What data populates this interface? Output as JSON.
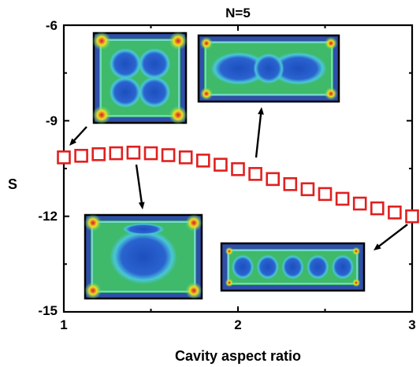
{
  "chart_data": {
    "type": "scatter",
    "title": "N=5",
    "xlabel": "Cavity aspect ratio",
    "ylabel": "S",
    "xlim": [
      1,
      3
    ],
    "ylim": [
      -15,
      -6
    ],
    "xticks": [
      "1",
      "2",
      "3"
    ],
    "yticks": [
      "-6",
      "-9",
      "-12",
      "-15"
    ],
    "grid": false,
    "marker": "open-square",
    "colors": {
      "marker": "#e02020",
      "axis": "#000000",
      "inset_bg": "#2f4fa8",
      "inset_frame": "#000000"
    },
    "x": [
      1.0,
      1.1,
      1.2,
      1.3,
      1.4,
      1.5,
      1.6,
      1.7,
      1.8,
      1.9,
      2.0,
      2.1,
      2.2,
      2.3,
      2.4,
      2.5,
      2.6,
      2.7,
      2.8,
      2.9,
      3.0
    ],
    "y": [
      -10.15,
      -10.1,
      -10.05,
      -10.02,
      -10.0,
      -10.02,
      -10.08,
      -10.15,
      -10.25,
      -10.38,
      -10.52,
      -10.67,
      -10.83,
      -10.99,
      -11.15,
      -11.3,
      -11.45,
      -11.6,
      -11.75,
      -11.88,
      -12.0
    ],
    "insets": [
      {
        "name": "inset-ratio-1-0",
        "pattern": "four-lobes",
        "points_to": [
          1.0,
          -10.15
        ]
      },
      {
        "name": "inset-ratio-1-4",
        "pattern": "diamond",
        "points_to": [
          1.45,
          -10.1
        ]
      },
      {
        "name": "inset-ratio-2-1",
        "pattern": "elongated-lobes",
        "points_to": [
          2.15,
          -10.6
        ]
      },
      {
        "name": "inset-ratio-3-0",
        "pattern": "five-lobes-chain",
        "points_to": [
          3.0,
          -12.0
        ]
      }
    ]
  }
}
